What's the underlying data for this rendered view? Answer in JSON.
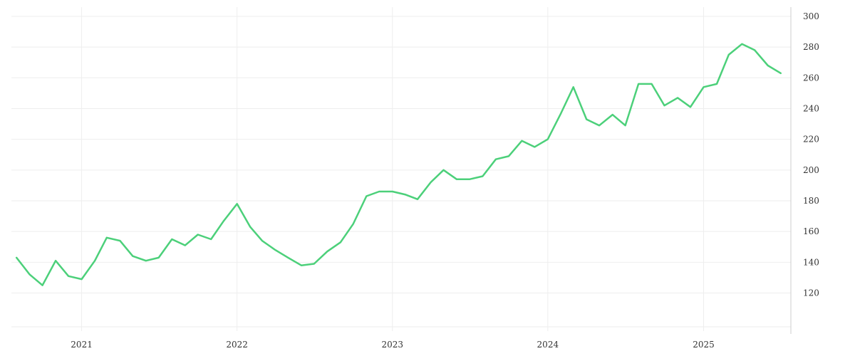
{
  "colors": {
    "series": "#4cd07a",
    "grid": "#eeeeee",
    "axis": "#cccccc",
    "text": "#333333"
  },
  "chart_data": {
    "type": "line",
    "title": "",
    "xlabel": "",
    "ylabel": "",
    "grid": true,
    "legend": "none",
    "y_axis_side": "right",
    "x_tick_labels": [
      "2021",
      "2022",
      "2023",
      "2024",
      "2025"
    ],
    "y_tick_labels": [
      "120",
      "140",
      "160",
      "180",
      "200",
      "220",
      "240",
      "260",
      "280",
      "300"
    ],
    "y_ticks": [
      120,
      140,
      160,
      180,
      200,
      220,
      240,
      260,
      280,
      300
    ],
    "x_ticks": [
      "2021-01-01",
      "2022-01-01",
      "2023-01-01",
      "2024-01-01",
      "2025-01-01"
    ],
    "xlim": [
      "2020-07-20",
      "2025-07-25"
    ],
    "ylim": [
      98,
      306
    ],
    "series": [
      {
        "x": [
          "2020-08-01",
          "2020-09-01",
          "2020-10-01",
          "2020-11-01",
          "2020-12-01",
          "2021-01-01",
          "2021-02-01",
          "2021-03-01",
          "2021-04-01",
          "2021-05-01",
          "2021-06-01",
          "2021-07-01",
          "2021-08-01",
          "2021-09-01",
          "2021-10-01",
          "2021-11-01",
          "2021-12-01",
          "2022-01-01",
          "2022-02-01",
          "2022-03-01",
          "2022-04-01",
          "2022-05-01",
          "2022-06-01",
          "2022-07-01",
          "2022-08-01",
          "2022-09-01",
          "2022-10-01",
          "2022-11-01",
          "2022-12-01",
          "2023-01-01",
          "2023-02-01",
          "2023-03-01",
          "2023-04-01",
          "2023-05-01",
          "2023-06-01",
          "2023-07-01",
          "2023-08-01",
          "2023-09-01",
          "2023-10-01",
          "2023-11-01",
          "2023-12-01",
          "2024-01-01",
          "2024-02-01",
          "2024-03-01",
          "2024-04-01",
          "2024-05-01",
          "2024-06-01",
          "2024-07-01",
          "2024-08-01",
          "2024-09-01",
          "2024-10-01",
          "2024-11-01",
          "2024-12-01",
          "2025-01-01",
          "2025-02-01",
          "2025-03-01",
          "2025-04-01",
          "2025-05-01",
          "2025-06-01",
          "2025-07-01"
        ],
        "values": [
          143,
          132,
          125,
          141,
          131,
          129,
          141,
          156,
          154,
          144,
          141,
          143,
          155,
          151,
          158,
          155,
          167,
          178,
          163,
          154,
          148,
          143,
          138,
          139,
          147,
          153,
          165,
          183,
          186,
          186,
          184,
          181,
          192,
          200,
          194,
          194,
          196,
          207,
          209,
          219,
          215,
          220,
          237,
          254,
          233,
          229,
          236,
          229,
          256,
          256,
          242,
          247,
          241,
          254,
          256,
          275,
          282,
          278,
          268,
          263
        ]
      }
    ]
  }
}
